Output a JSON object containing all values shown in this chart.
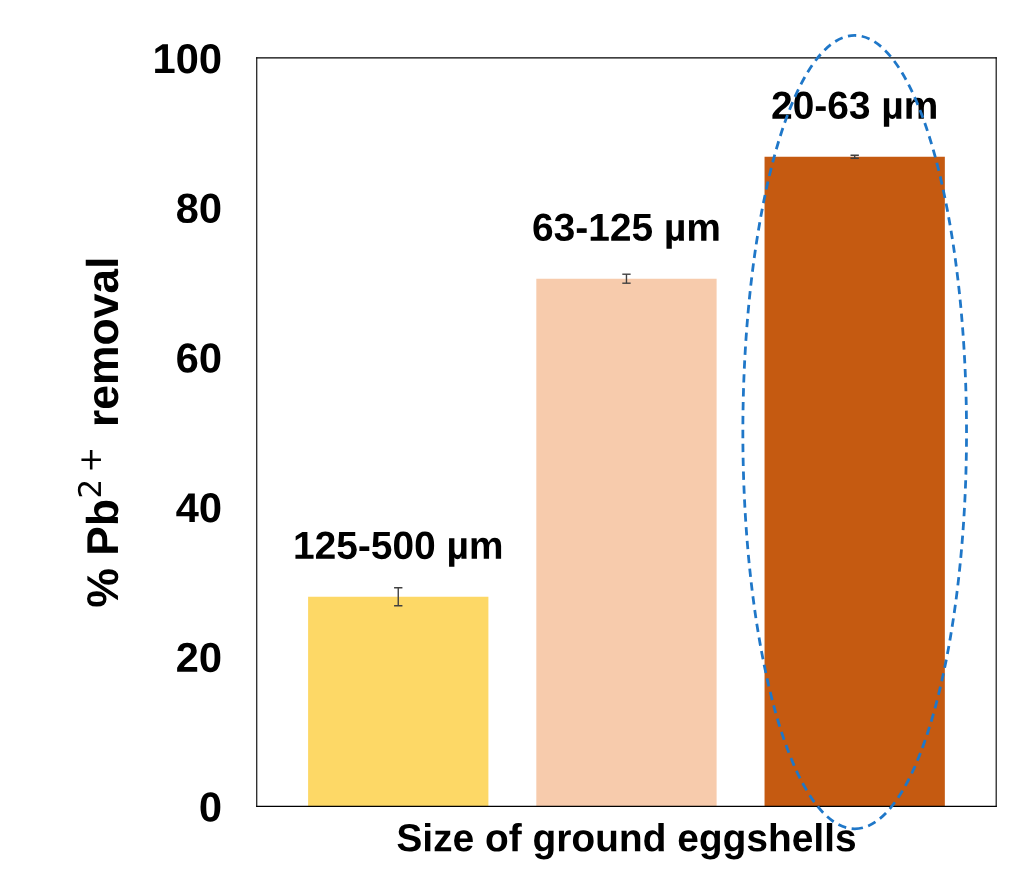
{
  "chart_data": {
    "type": "bar",
    "categories": [
      "125-500 µm",
      "63-125 µm",
      "20-63 µm"
    ],
    "values": [
      28,
      70.5,
      86.8
    ],
    "errors": [
      1.2,
      0.6,
      0.2
    ],
    "colors": [
      "#fdd866",
      "#f7cbac",
      "#c55a11"
    ],
    "xlabel": "Size of ground eggshells",
    "ylabel": "% Pb$^{2+}$ removal",
    "ylim": [
      0,
      100
    ],
    "yticks": [
      0,
      20,
      40,
      60,
      80,
      100
    ],
    "tick_labels": "y",
    "grid": false,
    "legend": false
  }
}
